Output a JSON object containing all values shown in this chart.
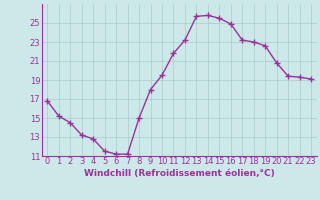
{
  "x": [
    0,
    1,
    2,
    3,
    4,
    5,
    6,
    7,
    8,
    9,
    10,
    11,
    12,
    13,
    14,
    15,
    16,
    17,
    18,
    19,
    20,
    21,
    22,
    23
  ],
  "y": [
    16.8,
    15.2,
    14.5,
    13.2,
    12.8,
    11.5,
    11.2,
    11.2,
    15.0,
    18.0,
    19.5,
    21.8,
    23.2,
    25.7,
    25.8,
    25.5,
    24.9,
    23.2,
    23.0,
    22.6,
    20.8,
    19.4,
    19.3,
    19.1
  ],
  "line_color": "#993399",
  "marker": "+",
  "marker_size": 4,
  "xlabel": "Windchill (Refroidissement éolien,°C)",
  "ylim": [
    11,
    27
  ],
  "xlim": [
    -0.5,
    23.5
  ],
  "yticks": [
    11,
    13,
    15,
    17,
    19,
    21,
    23,
    25
  ],
  "xtick_labels": [
    "0",
    "1",
    "2",
    "3",
    "4",
    "5",
    "6",
    "7",
    "8",
    "9",
    "10",
    "11",
    "12",
    "13",
    "14",
    "15",
    "16",
    "17",
    "18",
    "19",
    "20",
    "21",
    "22",
    "23"
  ],
  "background_color": "#cce8e8",
  "grid_color": "#aacccc",
  "line_width": 1.0,
  "tick_fontsize": 6.0,
  "xlabel_fontsize": 6.5
}
